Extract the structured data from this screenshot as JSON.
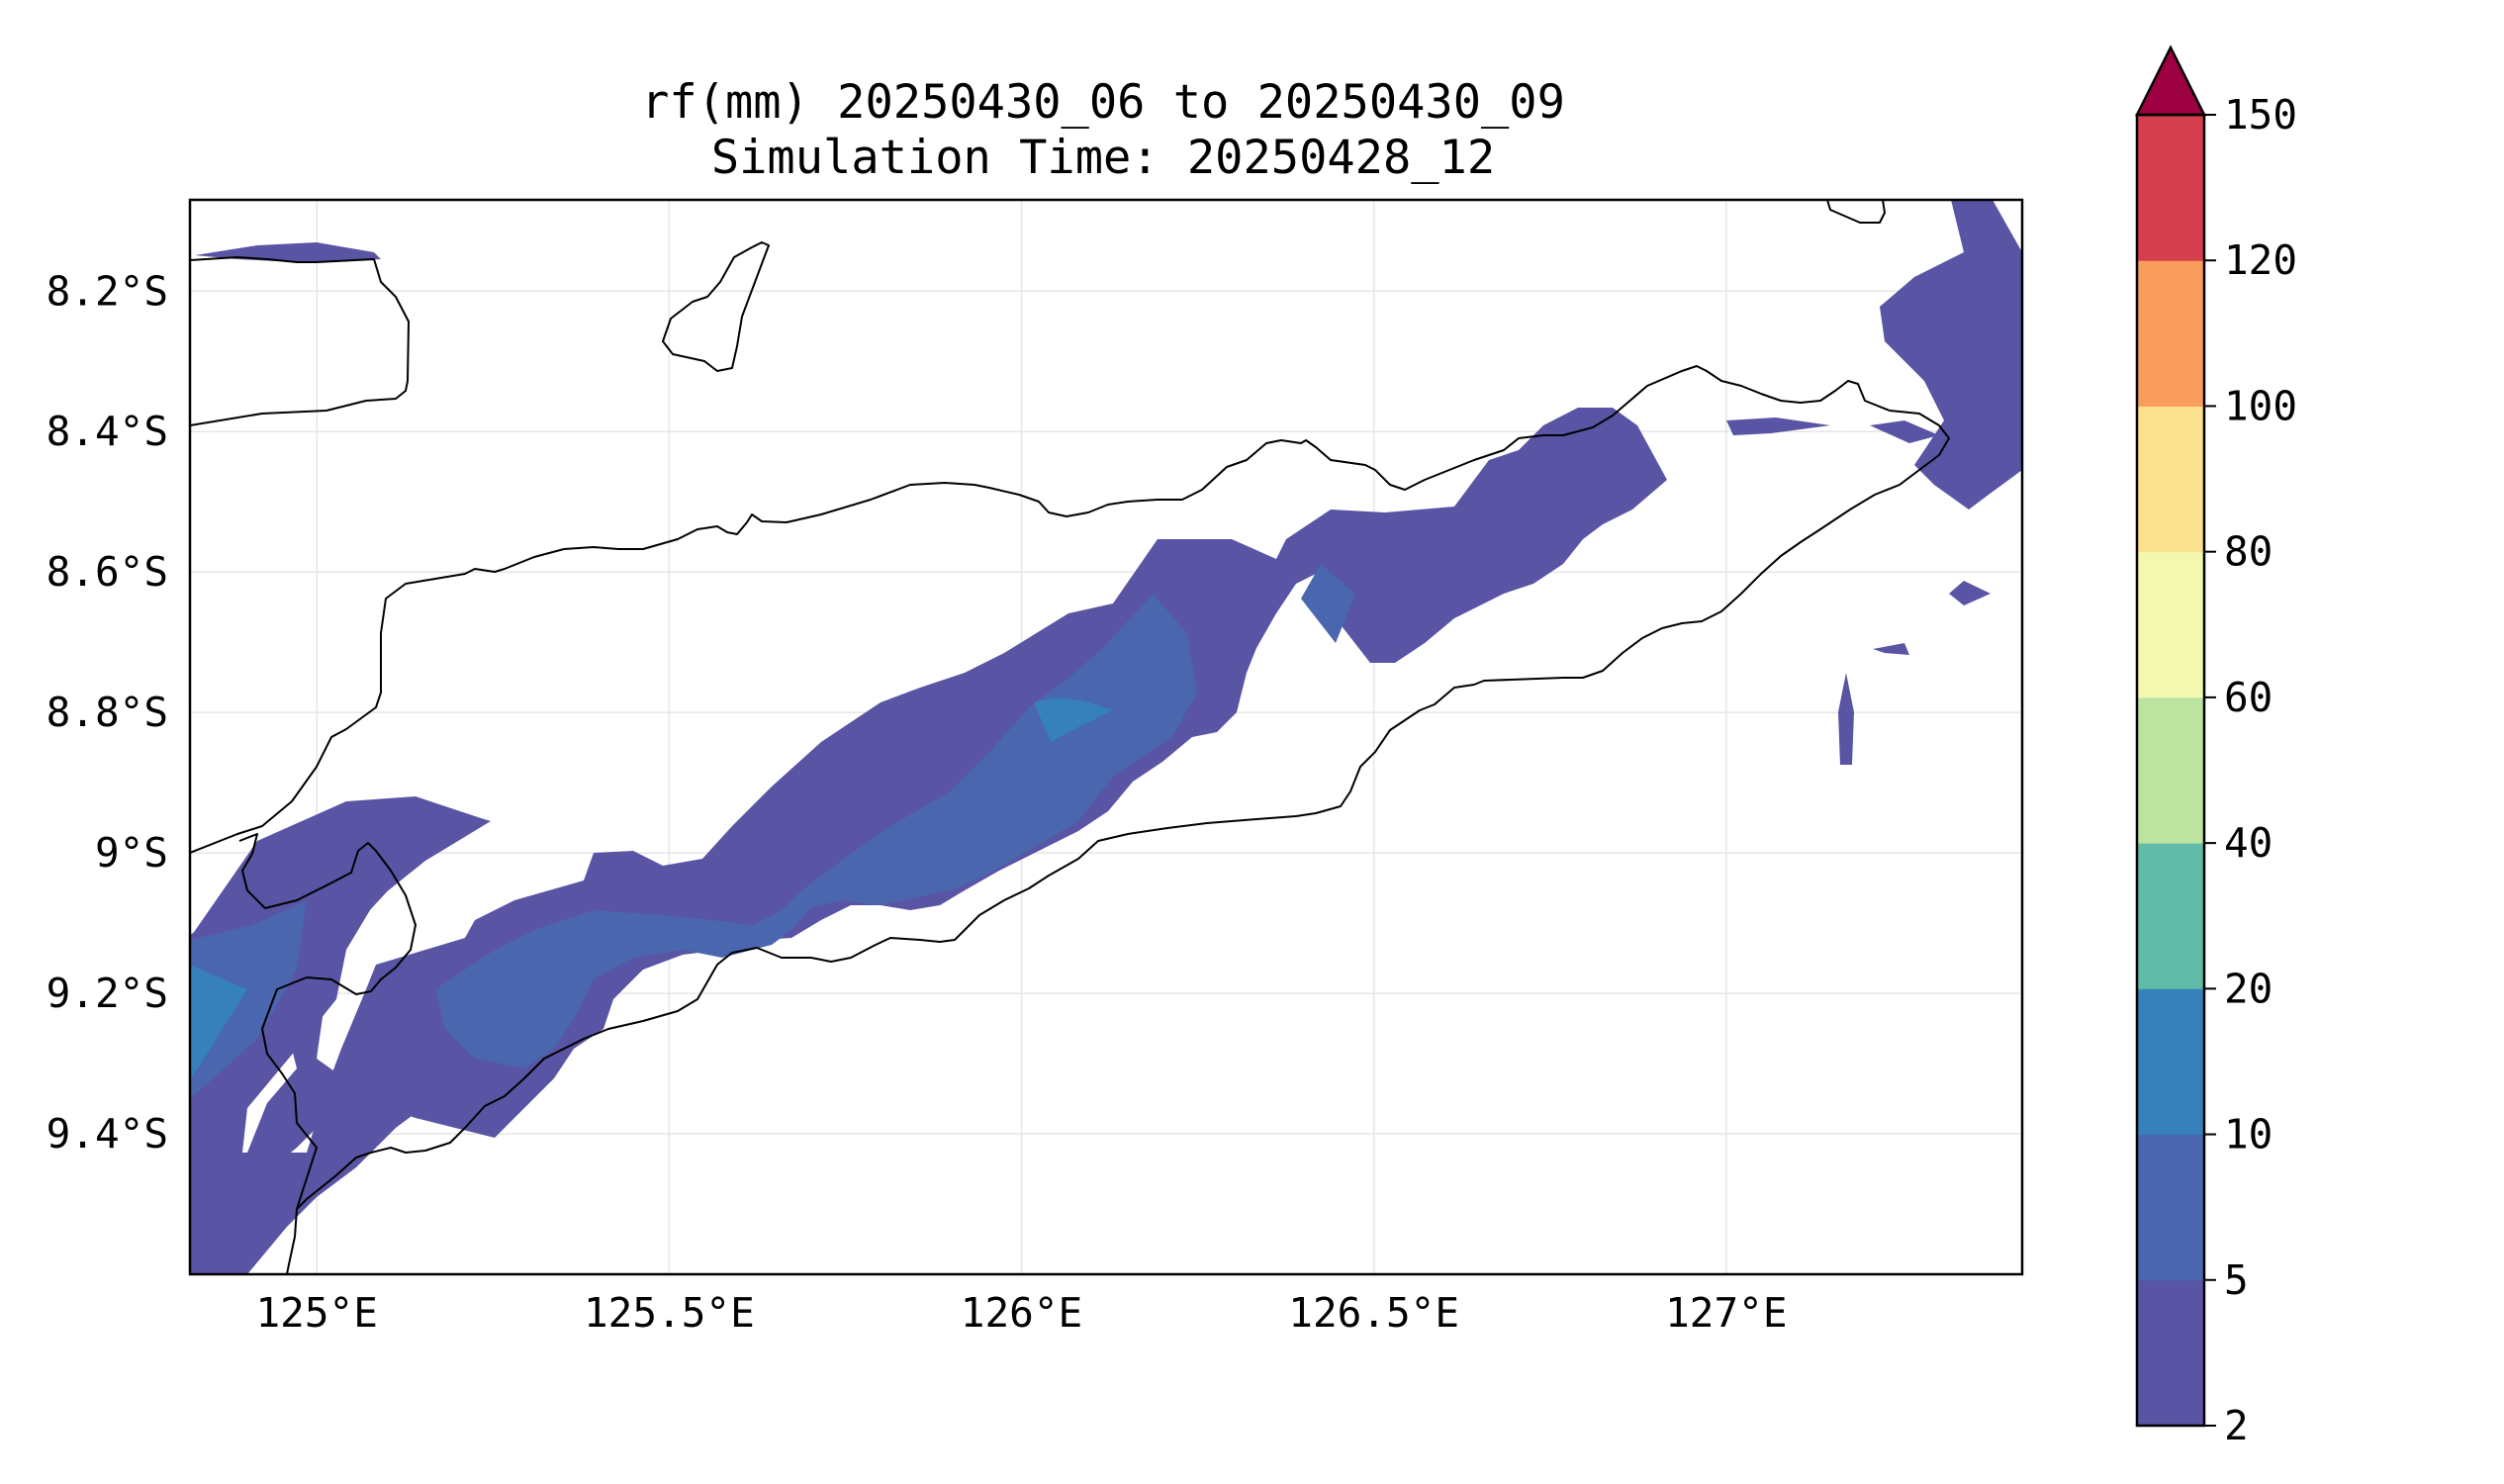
{
  "title": {
    "line1": "rf(mm) 20250430_06 to 20250430_09",
    "line2": "Simulation Time: 20250428_12"
  },
  "map": {
    "lon_range": [
      124.82,
      127.42
    ],
    "lat_range": [
      -9.6,
      -8.07
    ],
    "x_ticks": [
      {
        "value": 125.0,
        "label": "125°E"
      },
      {
        "value": 125.5,
        "label": "125.5°E"
      },
      {
        "value": 126.0,
        "label": "126°E"
      },
      {
        "value": 126.5,
        "label": "126.5°E"
      },
      {
        "value": 127.0,
        "label": "127°E"
      }
    ],
    "y_ticks": [
      {
        "value": -8.2,
        "label": "8.2°S"
      },
      {
        "value": -8.4,
        "label": "8.4°S"
      },
      {
        "value": -8.6,
        "label": "8.6°S"
      },
      {
        "value": -8.8,
        "label": "8.8°S"
      },
      {
        "value": -9.0,
        "label": "9°S"
      },
      {
        "value": -9.2,
        "label": "9.2°S"
      },
      {
        "value": -9.4,
        "label": "9.4°S"
      }
    ],
    "gridlines": true,
    "coastline_color": "#000000"
  },
  "colorbar": {
    "levels": [
      "2",
      "5",
      "10",
      "20",
      "40",
      "60",
      "80",
      "100",
      "120",
      "150"
    ],
    "colors": [
      "#5954a4",
      "#4a66ae",
      "#3680bb",
      "#60bba8",
      "#bce3a0",
      "#f2f8b0",
      "#fbe08e",
      "#f99d5c",
      "#d43e4f"
    ],
    "extend_color": "#9e0142",
    "extend": "max"
  }
}
